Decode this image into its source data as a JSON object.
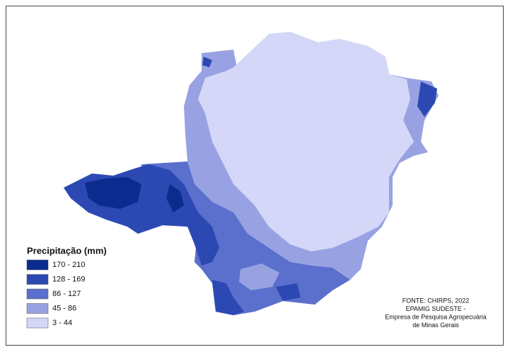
{
  "legend": {
    "title": "Precipitação (mm)",
    "items": [
      {
        "label": "170 - 210",
        "color": "#0b2c8e"
      },
      {
        "label": "128 - 169",
        "color": "#2c49b3"
      },
      {
        "label": "86 - 127",
        "color": "#5b6fcd"
      },
      {
        "label": "45 - 86",
        "color": "#98a2e3"
      },
      {
        "label": "3 - 44",
        "color": "#d5d7f8"
      }
    ]
  },
  "source": [
    "FONTE: CHIRPS, 2022",
    "EPAMIG SUDESTE -",
    "Empresa de Pesquisa Agropecuária",
    "de Minas Gerais"
  ]
}
